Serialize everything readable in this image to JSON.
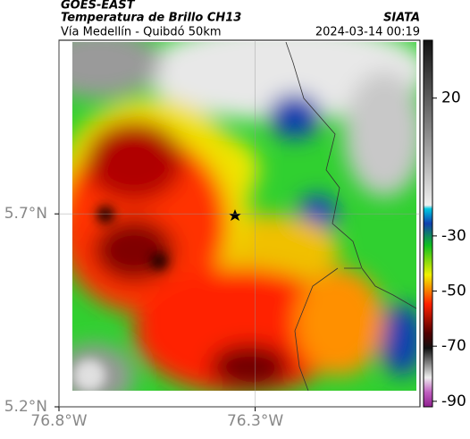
{
  "header": {
    "title": "GOES-EAST",
    "subtitle": "Temperatura de Brillo CH13",
    "source": "SIATA",
    "route": "Vía Medellín - Quibdó 50km",
    "timestamp": "2024-03-14 00:19"
  },
  "map": {
    "xlim": [
      -76.8,
      -75.88
    ],
    "ylim": [
      5.2,
      6.15
    ],
    "xticks": [
      {
        "value": -76.8,
        "label": "76.8°W"
      },
      {
        "value": -76.3,
        "label": "76.3°W"
      }
    ],
    "yticks": [
      {
        "value": 5.2,
        "label": "5.2°N"
      },
      {
        "value": 5.7,
        "label": "5.7°N"
      }
    ],
    "grid": true
  },
  "colorbar": {
    "lim": [
      -92,
      41
    ],
    "ticks": [
      20,
      -30,
      -50,
      -70,
      -90
    ]
  }
}
